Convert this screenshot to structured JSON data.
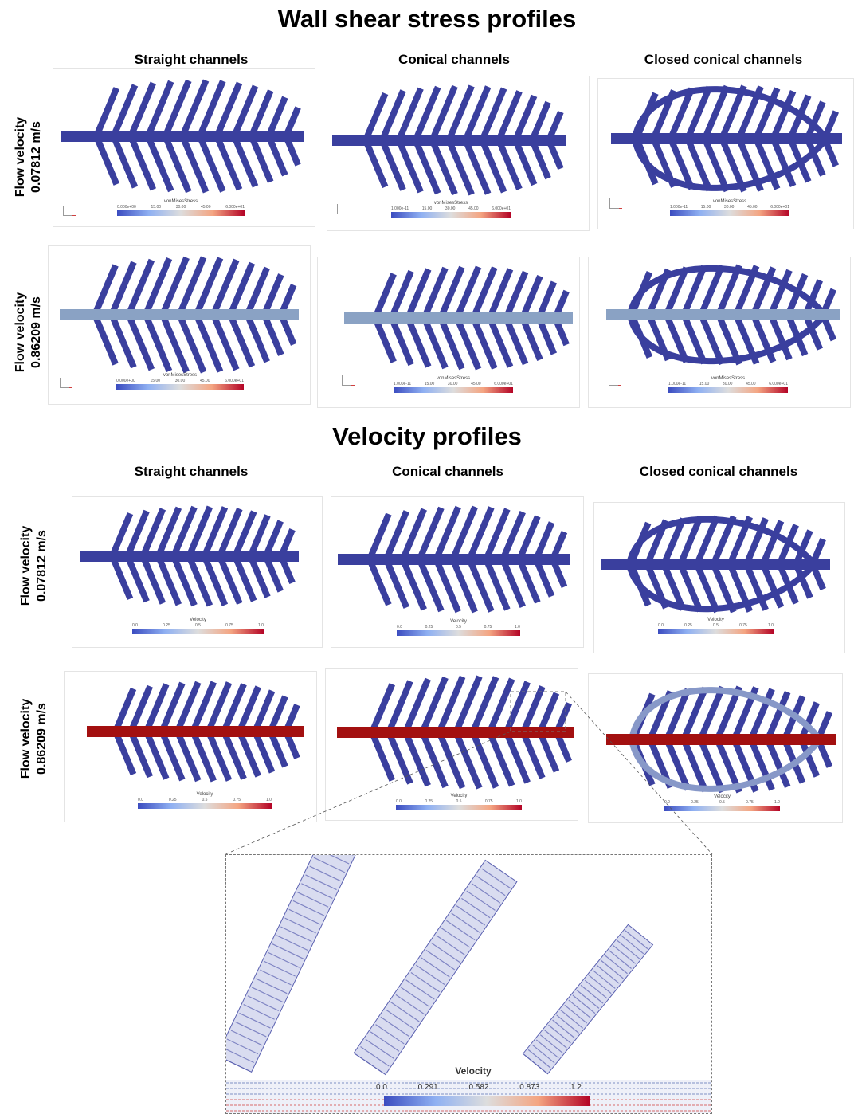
{
  "titles": {
    "wss": "Wall shear stress profiles",
    "velocity": "Velocity profiles"
  },
  "columns": {
    "straight": "Straight channels",
    "conical": "Conical channels",
    "closed": "Closed conical channels"
  },
  "rows": {
    "r1_line1": "Flow velocity",
    "r1_line2": "0.07812 m/s",
    "r2_line1": "Flow velocity",
    "r2_line2": "0.86209 m/s"
  },
  "colorbars": {
    "wss_title": "vonMisesStress",
    "wss_straight_ticks": [
      "0.000e+00",
      "15.00",
      "30.00",
      "45.00",
      "6.000e+01"
    ],
    "wss_conical_ticks": [
      "1.000e-11",
      "15.00",
      "30.00",
      "45.00",
      "6.000e+01"
    ],
    "wss_closed_ticks": [
      "1.000e-11",
      "15.00",
      "30.00",
      "45.00",
      "6.000e+01"
    ],
    "vel_title": "Velocity",
    "vel_ticks": [
      "0.0",
      "0.25",
      "0.5",
      "0.75",
      "1.0"
    ]
  },
  "zoom": {
    "colorbar_title": "Velocity",
    "ticks": [
      "0.0",
      "0.291",
      "0.582",
      "0.873",
      "1.2"
    ]
  },
  "colors": {
    "channel_blue": "#3a3f9e",
    "inlet_light_blue": "#8aa2c4",
    "inlet_red": "#a31010",
    "light_outline": "#8798c8",
    "zoom_vectors": "#5a60b0"
  }
}
